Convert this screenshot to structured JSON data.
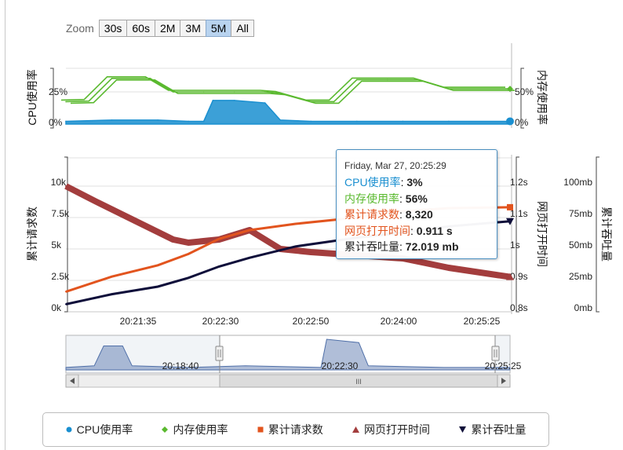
{
  "zoom": {
    "label": "Zoom",
    "buttons": [
      "30s",
      "60s",
      "2M",
      "3M",
      "5M",
      "All"
    ],
    "active": "5M"
  },
  "colors": {
    "cpu": "#1a8fd0",
    "mem": "#5ab92f",
    "requests": "#e2541e",
    "loadtime": "#a33d3d",
    "throughput": "#0e0e3a",
    "navigator": "#4f6fa8",
    "tooltip_border": "#4a8fc1"
  },
  "chart_data": [
    {
      "type": "line",
      "panel": "top",
      "left_axis_title": "CPU使用率",
      "right_axis_title": "内存使用率",
      "left_ticks": [
        "25%",
        "0%"
      ],
      "right_ticks": [
        "50%",
        "0%"
      ],
      "series": [
        {
          "name": "CPU使用率",
          "type": "area",
          "x": [
            "20:20:50",
            "20:21:20",
            "20:21:50",
            "20:22:10",
            "20:22:20",
            "20:22:26",
            "20:22:40",
            "20:23:00",
            "20:23:10",
            "20:23:30",
            "20:24:00",
            "20:24:30",
            "20:25:00",
            "20:25:40"
          ],
          "y": [
            1,
            2,
            2,
            1,
            1,
            18,
            18,
            16,
            2,
            1,
            1,
            1,
            1,
            1
          ]
        },
        {
          "name": "内存使用率",
          "type": "line",
          "x": [
            "20:20:50",
            "20:21:05",
            "20:21:20",
            "20:21:45",
            "20:22:00",
            "20:22:20",
            "20:22:40",
            "20:23:00",
            "20:23:10",
            "20:23:30",
            "20:23:45",
            "20:24:00",
            "20:24:20",
            "20:24:40",
            "20:25:00",
            "20:25:40"
          ],
          "y": [
            34,
            35,
            72,
            72,
            50,
            50,
            50,
            50,
            48,
            34,
            34,
            70,
            70,
            70,
            55,
            55
          ]
        }
      ]
    },
    {
      "type": "line",
      "panel": "main",
      "left_axis_title": "累计请求数",
      "right_axis_title_1": "网页打开时间",
      "right_axis_title_2": "累计吞吐量",
      "left_ticks": [
        "10k",
        "7.5k",
        "5k",
        "2.5k",
        "0k"
      ],
      "right_ticks_1": [
        "1.2s",
        "1.1s",
        "1s",
        "0.9s",
        "0.8s"
      ],
      "right_ticks_2": [
        "100mb",
        "75mb",
        "50mb",
        "25mb",
        "0mb"
      ],
      "x_ticks": [
        "20:21:35",
        "20:22:30",
        "20:22:50",
        "20:24:00",
        "20:25:25"
      ],
      "series": [
        {
          "name": "累计请求数",
          "x": [
            "20:20:50",
            "20:21:20",
            "20:21:50",
            "20:22:10",
            "20:22:30",
            "20:22:50",
            "20:23:20",
            "20:24:00",
            "20:24:30",
            "20:25:00",
            "20:25:40"
          ],
          "y": [
            1600,
            2800,
            3700,
            4600,
            5800,
            6500,
            7000,
            7500,
            8000,
            8250,
            8320
          ]
        },
        {
          "name": "网页打开时间",
          "x": [
            "20:20:50",
            "20:21:10",
            "20:21:35",
            "20:22:00",
            "20:22:10",
            "20:22:30",
            "20:22:50",
            "20:23:10",
            "20:23:30",
            "20:24:00",
            "20:24:30",
            "20:25:00",
            "20:25:40"
          ],
          "y": [
            1.2,
            1.15,
            1.09,
            1.03,
            1.02,
            1.03,
            1.06,
            1.0,
            0.99,
            0.98,
            0.97,
            0.94,
            0.911
          ]
        },
        {
          "name": "累计吞吐量",
          "x": [
            "20:20:50",
            "20:21:20",
            "20:21:50",
            "20:22:10",
            "20:22:30",
            "20:22:50",
            "20:23:20",
            "20:24:00",
            "20:24:30",
            "20:25:00",
            "20:25:40"
          ],
          "y": [
            6,
            14,
            20,
            27,
            36,
            43,
            52,
            59,
            63,
            68,
            72.019
          ]
        }
      ]
    }
  ],
  "navigator": {
    "labels": [
      "20:18:40",
      "20:22:30",
      "20:25:25"
    ],
    "scroll_thumb_label": "III"
  },
  "tooltip": {
    "timestamp": "Friday, Mar 27, 20:25:29",
    "rows": [
      {
        "label": "CPU使用率",
        "value": "3%",
        "color": "#1a8fd0"
      },
      {
        "label": "内存使用率",
        "value": "56%",
        "color": "#5ab92f"
      },
      {
        "label": "累计请求数",
        "value": "8,320",
        "color": "#e2541e"
      },
      {
        "label": "网页打开时间",
        "value": "0.911 s",
        "color": "#e2541e"
      },
      {
        "label": "累计吞吐量",
        "value": "72.019 mb",
        "color": "#222222"
      }
    ]
  },
  "legend": [
    {
      "name": "CPU使用率",
      "marker": "circle",
      "color": "#1a8fd0"
    },
    {
      "name": "内存使用率",
      "marker": "diamond",
      "color": "#5ab92f"
    },
    {
      "name": "累计请求数",
      "marker": "square",
      "color": "#e2541e"
    },
    {
      "name": "网页打开时间",
      "marker": "triangle",
      "color": "#a33d3d"
    },
    {
      "name": "累计吞吐量",
      "marker": "triangle-down",
      "color": "#0e0e3a"
    }
  ]
}
